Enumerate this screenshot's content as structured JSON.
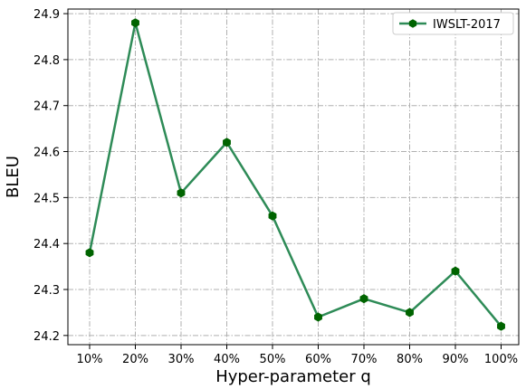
{
  "chart_data": {
    "type": "line",
    "title": "",
    "xlabel": "Hyper-parameter q",
    "ylabel": "BLEU",
    "categories": [
      "10%",
      "20%",
      "30%",
      "40%",
      "50%",
      "60%",
      "70%",
      "80%",
      "90%",
      "100%"
    ],
    "series": [
      {
        "name": "IWSLT-2017",
        "values": [
          24.38,
          24.88,
          24.51,
          24.62,
          24.46,
          24.24,
          24.28,
          24.25,
          24.34,
          24.22
        ],
        "color": "#2e8b57",
        "marker_color": "#006400",
        "marker": "hexagon"
      }
    ],
    "ylim": [
      24.18,
      24.91
    ],
    "yticks": [
      "24.2",
      "24.3",
      "24.4",
      "24.5",
      "24.6",
      "24.7",
      "24.8",
      "24.9"
    ],
    "grid": true,
    "legend_position": "top-right"
  }
}
